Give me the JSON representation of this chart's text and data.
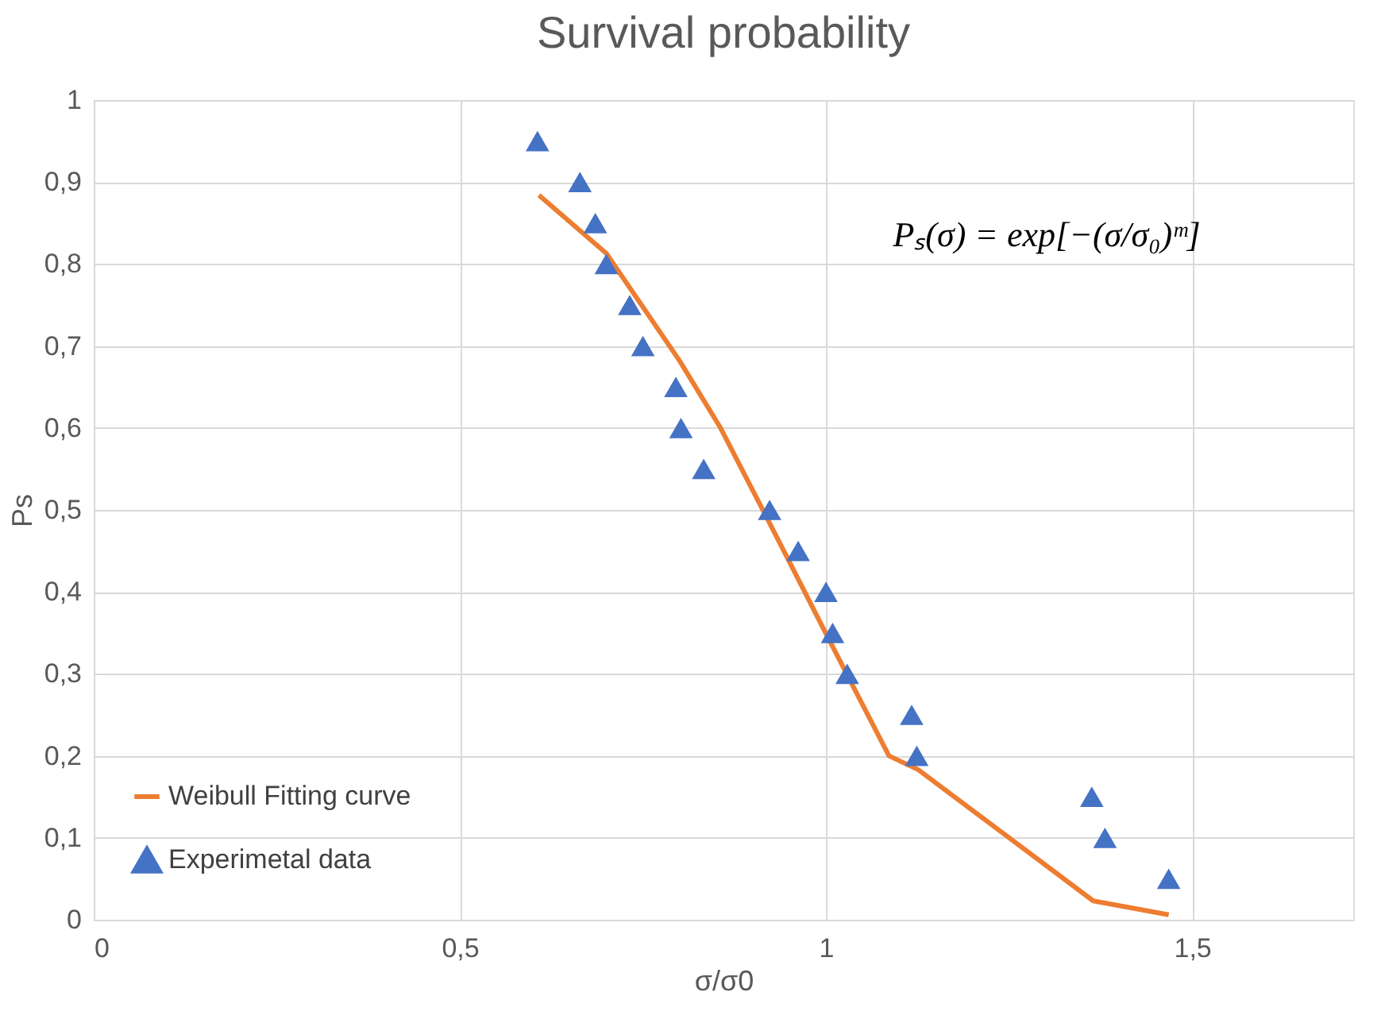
{
  "chart_data": {
    "type": "scatter",
    "title": "Survival probability",
    "xlabel": "σ/σ0",
    "ylabel": "Ps",
    "annotations": [
      "Pₛ(σ) = exp[−(σ/σ₀)ᵐ]"
    ],
    "xlim": [
      0,
      1.72
    ],
    "ylim": [
      0,
      1
    ],
    "xticks": [
      0,
      {
        "value": 0.5,
        "label": "0,5"
      },
      1,
      {
        "value": 1.5,
        "label": "1,5"
      }
    ],
    "yticks": [
      0,
      {
        "value": 0.1,
        "label": "0,1"
      },
      {
        "value": 0.2,
        "label": "0,2"
      },
      {
        "value": 0.3,
        "label": "0,3"
      },
      {
        "value": 0.4,
        "label": "0,4"
      },
      {
        "value": 0.5,
        "label": "0,5"
      },
      {
        "value": 0.6,
        "label": "0,6"
      },
      {
        "value": 0.7,
        "label": "0,7"
      },
      {
        "value": 0.8,
        "label": "0,8"
      },
      {
        "value": 0.9,
        "label": "0,9"
      },
      1
    ],
    "grid": true,
    "legend": "bottom left",
    "series": [
      {
        "name": "Weibull Fitting curve",
        "type": "line",
        "color": "#ed7d31",
        "marker": "none",
        "line_style": "solid",
        "x": [
          0.608,
          0.7,
          0.8,
          0.856,
          0.923,
          1.0,
          1.086,
          1.126,
          1.365,
          1.468
        ],
        "values": [
          0.884,
          0.813,
          0.682,
          0.6,
          0.484,
          0.349,
          0.2,
          0.183,
          0.023,
          0.006
        ]
      },
      {
        "name": "Experimetal data",
        "type": "scatter",
        "color": "#4472c4",
        "marker": "triangle",
        "x": [
          0.606,
          0.664,
          0.685,
          0.7,
          0.732,
          0.75,
          0.795,
          0.802,
          0.833,
          0.923,
          0.962,
          1.0,
          1.009,
          1.029,
          1.117,
          1.124,
          1.363,
          1.381,
          1.468
        ],
        "values": [
          0.95,
          0.9,
          0.85,
          0.8,
          0.75,
          0.7,
          0.65,
          0.6,
          0.55,
          0.5,
          0.45,
          0.4,
          0.35,
          0.3,
          0.25,
          0.2,
          0.15,
          0.1,
          0.05
        ]
      }
    ]
  }
}
